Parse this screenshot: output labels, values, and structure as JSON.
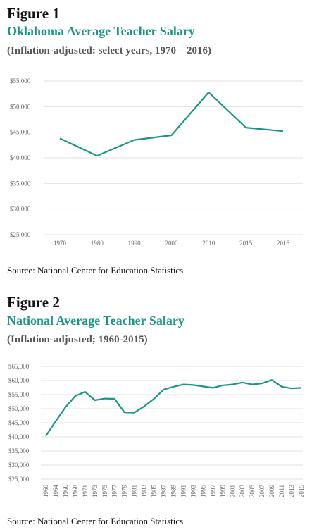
{
  "chart_data": [
    {
      "type": "line",
      "figure": "Figure 1",
      "title": "Oklahoma Average Teacher Salary",
      "subtitle": "(Inflation-adjusted: select years, 1970 – 2016)",
      "categories": [
        "1970",
        "1980",
        "1990",
        "2000",
        "2010",
        "2015",
        "2016"
      ],
      "values": [
        43800,
        40400,
        43500,
        44400,
        52800,
        45900,
        45200
      ],
      "color": "#1a9783",
      "ylim": [
        25000,
        55000
      ],
      "yticks": [
        {
          "value": 25000,
          "label": "$25,000"
        },
        {
          "value": 30000,
          "label": "$30,000"
        },
        {
          "value": 35000,
          "label": "$35,000"
        },
        {
          "value": 40000,
          "label": "$40,000"
        },
        {
          "value": 45000,
          "label": "$45,000"
        },
        {
          "value": 50000,
          "label": "$50,000"
        },
        {
          "value": 55000,
          "label": "$55,000"
        }
      ],
      "grid": true,
      "source": "Source: National Center for Education Statistics"
    },
    {
      "type": "line",
      "figure": "Figure 2",
      "title": "National Average Teacher Salary",
      "subtitle": "(Inflation-adjusted; 1960-2015)",
      "categories": [
        "1960",
        "1964",
        "1966",
        "1968",
        "1971",
        "1973",
        "1975",
        "1977",
        "1979",
        "1981",
        "1983",
        "1985",
        "1987",
        "1989",
        "1991",
        "1993",
        "1995",
        "1997",
        "1999",
        "2001",
        "2003",
        "2005",
        "2007",
        "2009",
        "2011",
        "2013",
        "2015"
      ],
      "values": [
        40300,
        45500,
        50500,
        54500,
        56000,
        53000,
        53600,
        53500,
        48700,
        48600,
        50800,
        53500,
        56800,
        57800,
        58600,
        58400,
        57900,
        57400,
        58300,
        58600,
        59300,
        58600,
        59000,
        60200,
        57800,
        57200,
        57400
      ],
      "color": "#1a9783",
      "ylim": [
        25000,
        65000
      ],
      "yticks": [
        {
          "value": 25000,
          "label": "$25,000"
        },
        {
          "value": 30000,
          "label": "$30,000"
        },
        {
          "value": 35000,
          "label": "$35,000"
        },
        {
          "value": 40000,
          "label": "$40,000"
        },
        {
          "value": 45000,
          "label": "$45,000"
        },
        {
          "value": 50000,
          "label": "$50,000"
        },
        {
          "value": 55000,
          "label": "$55,000"
        },
        {
          "value": 60000,
          "label": "$60,000"
        },
        {
          "value": 65000,
          "label": "$65,000"
        }
      ],
      "grid": true,
      "source": "Source: National Center for Education Statistics"
    }
  ]
}
